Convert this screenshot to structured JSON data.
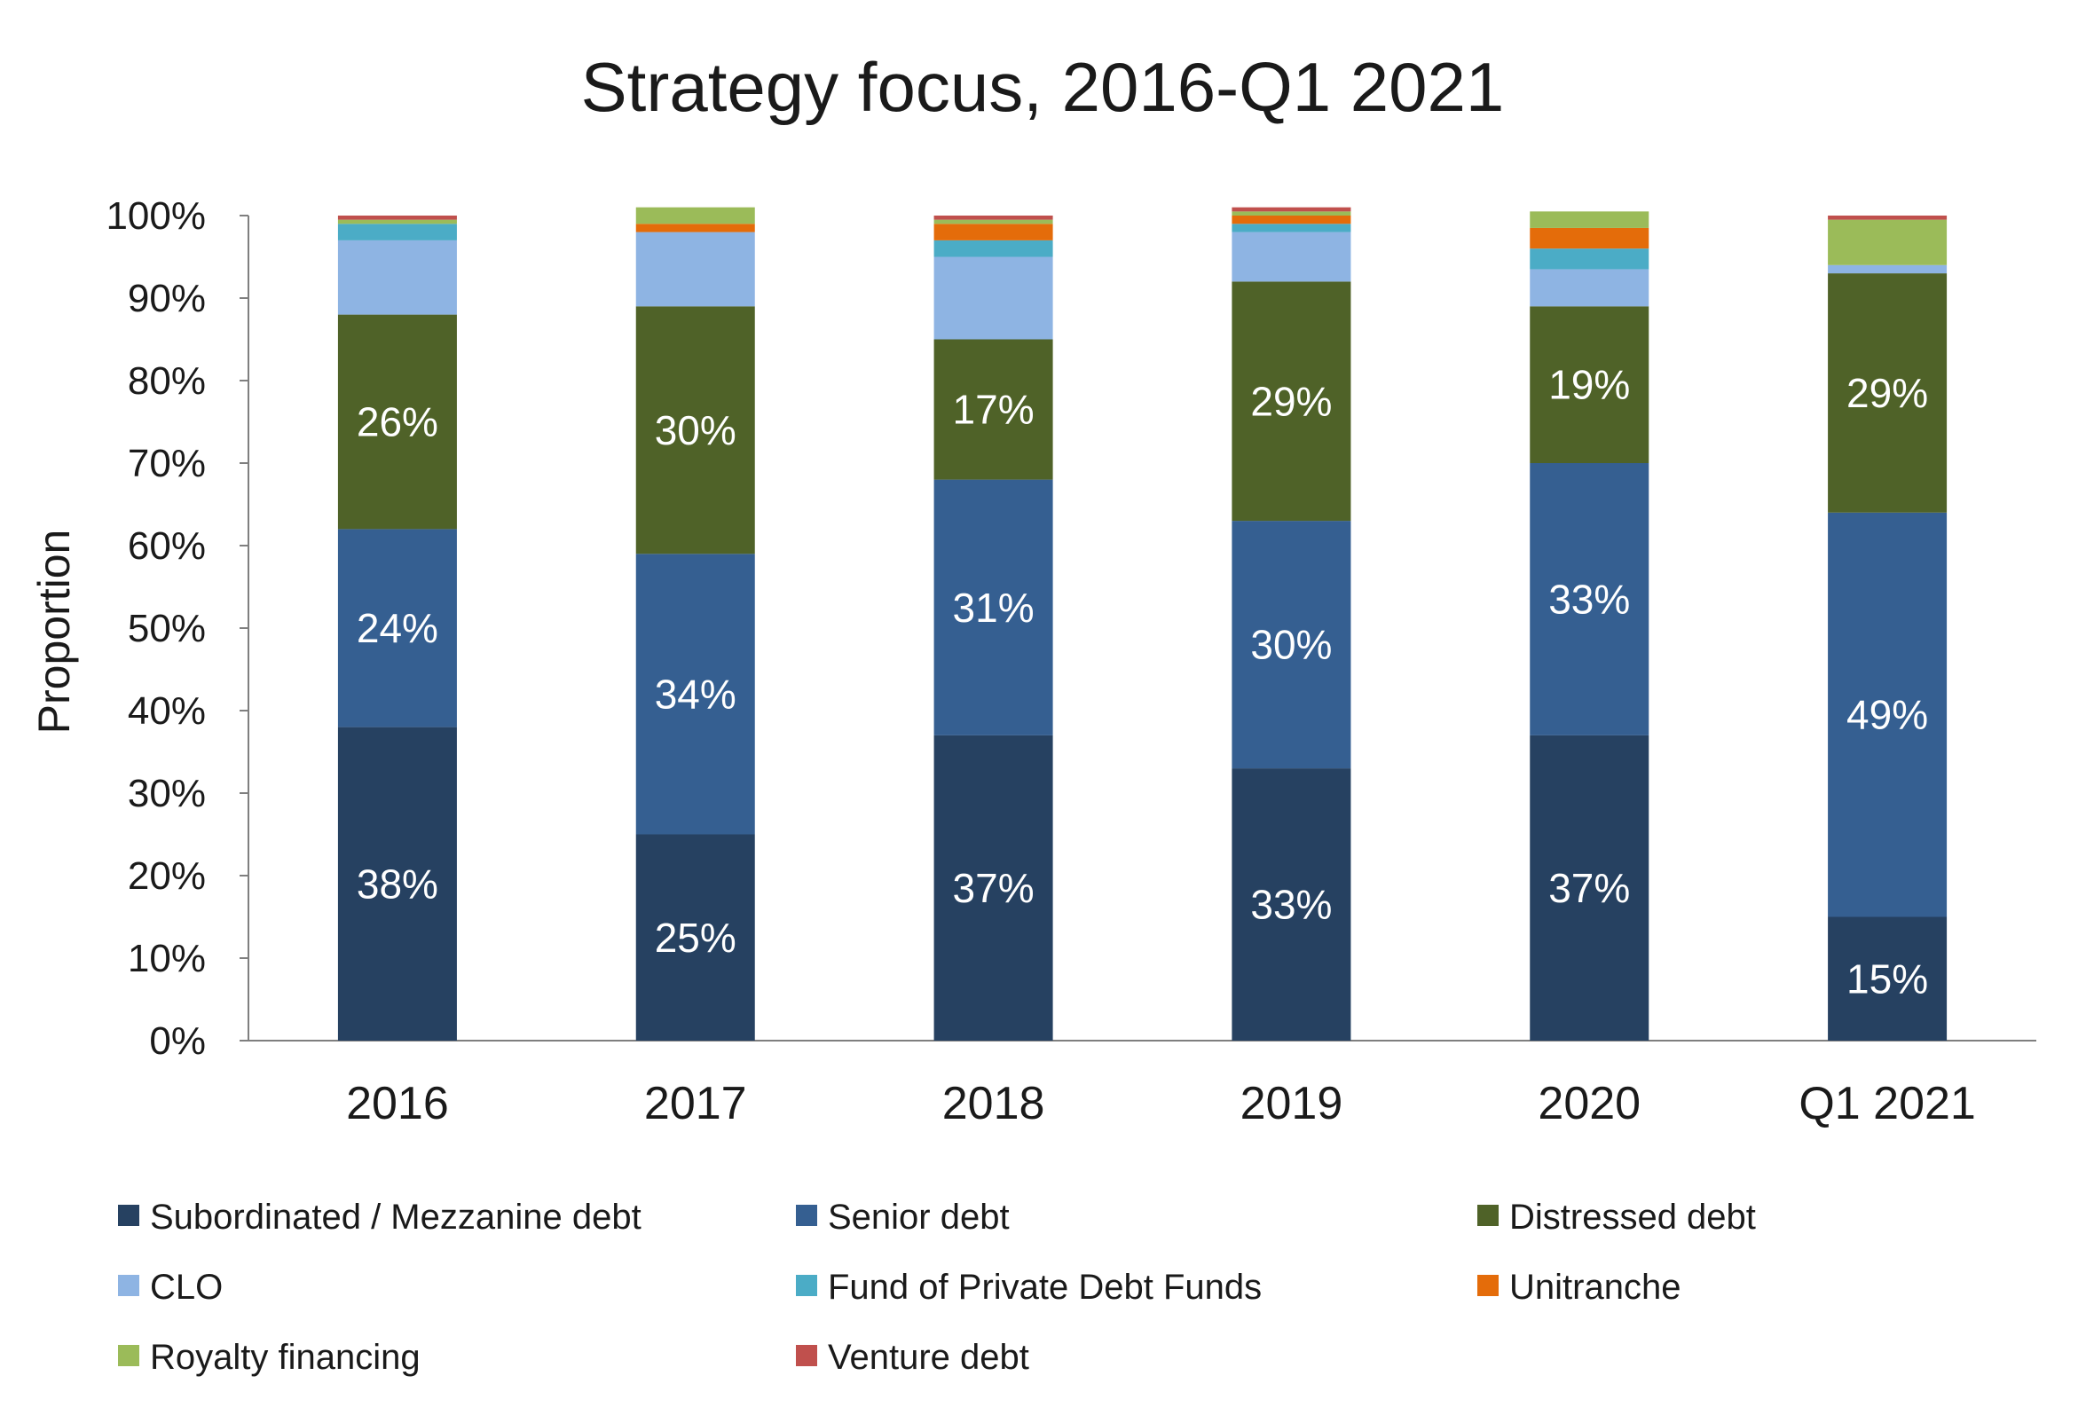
{
  "chart_data": {
    "type": "bar",
    "stacked": true,
    "title": "Strategy focus, 2016-Q1 2021",
    "ylabel": "Proportion",
    "xlabel": "",
    "ylim": [
      0,
      100
    ],
    "yticks": [
      "0%",
      "10%",
      "20%",
      "30%",
      "40%",
      "50%",
      "60%",
      "70%",
      "80%",
      "90%",
      "100%"
    ],
    "grid": false,
    "legend_position": "bottom",
    "categories": [
      "2016",
      "2017",
      "2018",
      "2019",
      "2020",
      "Q1 2021"
    ],
    "series": [
      {
        "name": "Subordinated / Mezzanine debt",
        "color": "#264161",
        "values": [
          38,
          25,
          37,
          33,
          37,
          15
        ],
        "labels": [
          "38%",
          "25%",
          "37%",
          "33%",
          "37%",
          "15%"
        ]
      },
      {
        "name": "Senior debt",
        "color": "#355f91",
        "values": [
          24,
          34,
          31,
          30,
          33,
          49
        ],
        "labels": [
          "24%",
          "34%",
          "31%",
          "30%",
          "33%",
          "49%"
        ]
      },
      {
        "name": "Distressed debt",
        "color": "#4f6228",
        "values": [
          26,
          30,
          17,
          29,
          19,
          29
        ],
        "labels": [
          "26%",
          "30%",
          "17%",
          "29%",
          "19%",
          "29%"
        ]
      },
      {
        "name": "CLO",
        "color": "#8eb4e3",
        "values": [
          9,
          9,
          10,
          6,
          4.5,
          1
        ],
        "labels": []
      },
      {
        "name": "Fund of Private Debt Funds",
        "color": "#4bacc6",
        "values": [
          2,
          0,
          2,
          1,
          2.5,
          0
        ],
        "labels": []
      },
      {
        "name": "Unitranche",
        "color": "#e46c0a",
        "values": [
          0,
          1,
          2,
          1,
          2.5,
          0
        ],
        "labels": []
      },
      {
        "name": "Royalty financing",
        "color": "#9bbb59",
        "values": [
          0.5,
          2,
          0.5,
          0.5,
          2,
          5.5
        ],
        "labels": []
      },
      {
        "name": "Venture debt",
        "color": "#c0504d",
        "values": [
          0.5,
          0,
          0.5,
          0.5,
          0,
          0.5
        ],
        "labels": []
      }
    ]
  }
}
